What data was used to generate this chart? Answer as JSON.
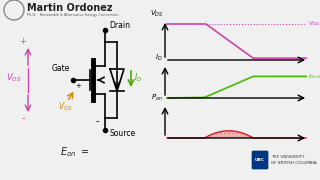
{
  "bg_color": "#f0f0f0",
  "title_text": "Martin Ordonez",
  "subtitle_text": "Ph.D. · Renewable & Alternative Energy Conversion",
  "mosfet_color": "#000000",
  "vds_arrow_color": "#cc44aa",
  "vgs_arrow_color": "#cc8800",
  "id_arrow_color": "#44aa00",
  "drain_label": "Drain",
  "gate_label": "Gate",
  "source_label": "Source",
  "econ_label": "E",
  "econ_sub": "on",
  "vds_line_color": "#cc44aa",
  "id_line_color": "#44bb00",
  "pon_fill_color": "#ee4444",
  "pon_fill_alpha": 0.35,
  "pon_line_color": "#cc2222",
  "vdd_dot_color": "#cc44aa",
  "idon_line_color": "#44bb00",
  "ubc_text": "THE UNIVERSITY\nOF BRITISH COLUMBIA"
}
